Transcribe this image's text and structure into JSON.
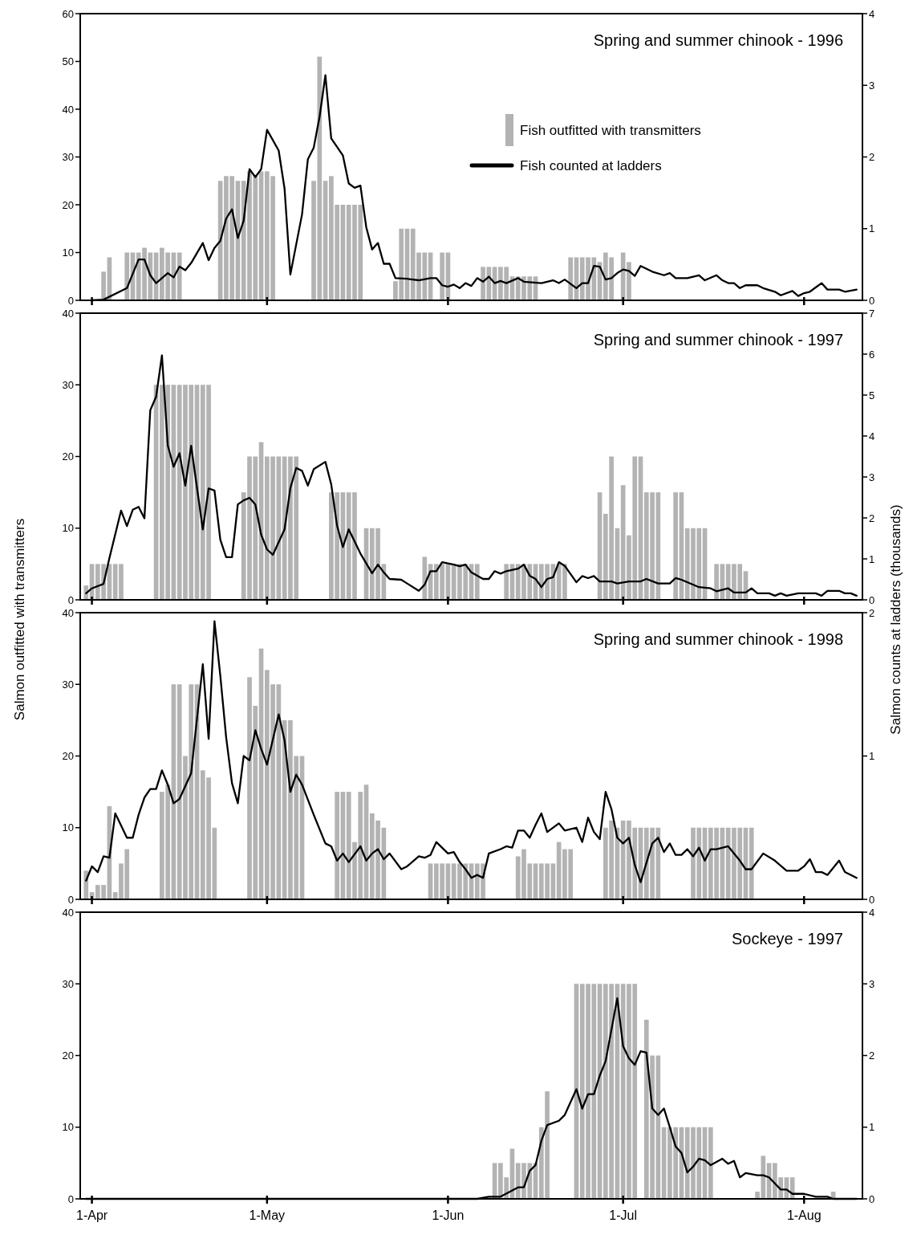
{
  "chart_data": [
    {
      "type": "bar",
      "title": "Spring and summer chinook - 1996",
      "legend": "right",
      "tick_labels": "y",
      "xlim": [
        "--03-30",
        "--08-11"
      ],
      "xticks": [
        {
          "value": "--04-01",
          "label": null
        },
        {
          "value": "--05-01",
          "label": null
        },
        {
          "value": "--06-01",
          "label": null
        },
        {
          "value": "--07-01",
          "label": null
        },
        {
          "value": "--08-01",
          "label": null
        }
      ],
      "ylim": [
        0,
        60
      ],
      "yticks": [
        0,
        10,
        20,
        30,
        40,
        50,
        60
      ],
      "y2lim": [
        0,
        4
      ],
      "y2ticks": [
        0,
        1,
        2,
        3,
        4
      ],
      "series": [
        {
          "name": "Fish outfitted with transmitters",
          "color": "#b3b3b3",
          "x": [
            "--04-03",
            "--04-04",
            "--04-07",
            "--04-08",
            "--04-09",
            "--04-10",
            "--04-11",
            "--04-12",
            "--04-13",
            "--04-14",
            "--04-15",
            "--04-16",
            "--04-23",
            "--04-24",
            "--04-25",
            "--04-26",
            "--04-27",
            "--04-28",
            "--04-29",
            "--04-30",
            "--05-01",
            "--05-02",
            "--05-09",
            "--05-10",
            "--05-11",
            "--05-12",
            "--05-13",
            "--05-14",
            "--05-15",
            "--05-16",
            "--05-17",
            "--05-23",
            "--05-24",
            "--05-25",
            "--05-26",
            "--05-27",
            "--05-28",
            "--05-29",
            "--05-31",
            "--06-01",
            "--06-07",
            "--06-08",
            "--06-09",
            "--06-10",
            "--06-11",
            "--06-12",
            "--06-13",
            "--06-14",
            "--06-15",
            "--06-16",
            "--06-22",
            "--06-23",
            "--06-24",
            "--06-25",
            "--06-26",
            "--06-27",
            "--06-28",
            "--06-29",
            "--07-01",
            "--07-02"
          ],
          "values": [
            6,
            9,
            10,
            10,
            10,
            11,
            10,
            10,
            11,
            10,
            10,
            10,
            25,
            26,
            26,
            25,
            25,
            27,
            26,
            27,
            27,
            26,
            25,
            51,
            25,
            26,
            20,
            20,
            20,
            20,
            20,
            4,
            15,
            15,
            15,
            10,
            10,
            10,
            10,
            10,
            7,
            7,
            7,
            7,
            7,
            5,
            5,
            5,
            5,
            5,
            9,
            9,
            9,
            9,
            9,
            8,
            10,
            9,
            10,
            8
          ]
        },
        {
          "type": "line",
          "axis": "y2",
          "name": "Fish counted at ladders",
          "color": "#000000",
          "x": [
            "--04-01",
            "--04-03",
            "--04-07",
            "--04-09",
            "--04-10",
            "--04-11",
            "--04-12",
            "--04-14",
            "--04-15",
            "--04-16",
            "--04-17",
            "--04-18",
            "--04-20",
            "--04-21",
            "--04-22",
            "--04-23",
            "--04-24",
            "--04-25",
            "--04-26",
            "--04-27",
            "--04-28",
            "--04-29",
            "--04-30",
            "--05-01",
            "--05-03",
            "--05-04",
            "--05-05",
            "--05-07",
            "--05-08",
            "--05-09",
            "--05-10",
            "--05-11",
            "--05-12",
            "--05-14",
            "--05-15",
            "--05-16",
            "--05-17",
            "--05-18",
            "--05-19",
            "--05-20",
            "--05-21",
            "--05-22",
            "--05-23",
            "--05-25",
            "--05-27",
            "--05-29",
            "--05-30",
            "--05-31",
            "--06-01",
            "--06-02",
            "--06-03",
            "--06-04",
            "--06-05",
            "--06-06",
            "--06-07",
            "--06-08",
            "--06-09",
            "--06-10",
            "--06-11",
            "--06-13",
            "--06-14",
            "--06-17",
            "--06-19",
            "--06-20",
            "--06-21",
            "--06-23",
            "--06-24",
            "--06-25",
            "--06-26",
            "--06-27",
            "--06-28",
            "--06-29",
            "--06-30",
            "--07-01",
            "--07-02",
            "--07-03",
            "--07-04",
            "--07-06",
            "--07-08",
            "--07-09",
            "--07-10",
            "--07-12",
            "--07-14",
            "--07-15",
            "--07-17",
            "--07-18",
            "--07-19",
            "--07-20",
            "--07-21",
            "--07-22",
            "--07-24",
            "--07-25",
            "--07-27",
            "--07-28",
            "--07-30",
            "--07-31",
            "--08-01",
            "--08-02",
            "--08-04",
            "--08-05",
            "--08-07",
            "--08-08",
            "--08-10"
          ],
          "values": [
            0,
            0.01,
            0.17,
            0.57,
            0.57,
            0.35,
            0.24,
            0.38,
            0.32,
            0.47,
            0.42,
            0.52,
            0.8,
            0.56,
            0.73,
            0.83,
            1.14,
            1.27,
            0.87,
            1.11,
            1.83,
            1.72,
            1.83,
            2.38,
            2.09,
            1.56,
            0.36,
            1.2,
            1.97,
            2.13,
            2.56,
            3.14,
            2.26,
            2.02,
            1.63,
            1.57,
            1.6,
            1.02,
            0.71,
            0.8,
            0.51,
            0.51,
            0.31,
            0.3,
            0.28,
            0.31,
            0.31,
            0.21,
            0.19,
            0.22,
            0.17,
            0.24,
            0.2,
            0.31,
            0.26,
            0.33,
            0.24,
            0.27,
            0.24,
            0.31,
            0.26,
            0.24,
            0.28,
            0.24,
            0.29,
            0.17,
            0.24,
            0.24,
            0.48,
            0.47,
            0.29,
            0.31,
            0.38,
            0.43,
            0.41,
            0.34,
            0.48,
            0.4,
            0.35,
            0.38,
            0.31,
            0.31,
            0.35,
            0.28,
            0.35,
            0.28,
            0.24,
            0.24,
            0.17,
            0.21,
            0.21,
            0.17,
            0.12,
            0.07,
            0.13,
            0.06,
            0.1,
            0.12,
            0.24,
            0.15,
            0.15,
            0.12,
            0.15
          ]
        }
      ]
    },
    {
      "type": "bar",
      "title": "Spring and summer chinook - 1997",
      "tick_labels": "y",
      "ylabel": "Salmon outfitted with transmitters",
      "y2label": "Salmon counts at ladders (thousands)",
      "xlim": [
        "--03-30",
        "--08-11"
      ],
      "xticks": [
        {
          "value": "--04-01",
          "label": null
        },
        {
          "value": "--05-01",
          "label": null
        },
        {
          "value": "--06-01",
          "label": null
        },
        {
          "value": "--07-01",
          "label": null
        },
        {
          "value": "--08-01",
          "label": null
        }
      ],
      "ylim": [
        0,
        40
      ],
      "yticks": [
        0,
        10,
        20,
        30,
        40
      ],
      "y2lim": [
        0,
        7
      ],
      "y2ticks": [
        0,
        1,
        2,
        3,
        4,
        5,
        6,
        7
      ],
      "series": [
        {
          "color": "#b3b3b3",
          "x": [
            "--03-31",
            "--04-01",
            "--04-02",
            "--04-03",
            "--04-04",
            "--04-05",
            "--04-06",
            "--04-12",
            "--04-13",
            "--04-14",
            "--04-15",
            "--04-16",
            "--04-17",
            "--04-18",
            "--04-19",
            "--04-20",
            "--04-21",
            "--04-27",
            "--04-28",
            "--04-29",
            "--04-30",
            "--05-01",
            "--05-02",
            "--05-03",
            "--05-04",
            "--05-05",
            "--05-06",
            "--05-12",
            "--05-13",
            "--05-14",
            "--05-15",
            "--05-16",
            "--05-18",
            "--05-19",
            "--05-20",
            "--05-21",
            "--05-28",
            "--05-29",
            "--05-30",
            "--05-31",
            "--06-01",
            "--06-02",
            "--06-03",
            "--06-04",
            "--06-05",
            "--06-06",
            "--06-11",
            "--06-12",
            "--06-13",
            "--06-14",
            "--06-15",
            "--06-16",
            "--06-17",
            "--06-18",
            "--06-19",
            "--06-20",
            "--06-21",
            "--06-27",
            "--06-28",
            "--06-29",
            "--06-30",
            "--07-01",
            "--07-02",
            "--07-03",
            "--07-04",
            "--07-05",
            "--07-06",
            "--07-07",
            "--07-10",
            "--07-11",
            "--07-12",
            "--07-13",
            "--07-14",
            "--07-15",
            "--07-17",
            "--07-18",
            "--07-19",
            "--07-20",
            "--07-21",
            "--07-22"
          ],
          "values": [
            2,
            5,
            5,
            5,
            5,
            5,
            5,
            30,
            30,
            30,
            30,
            30,
            30,
            30,
            30,
            30,
            30,
            15,
            20,
            20,
            22,
            20,
            20,
            20,
            20,
            20,
            20,
            15,
            15,
            15,
            15,
            15,
            10,
            10,
            10,
            5,
            6,
            5,
            5,
            5,
            5,
            5,
            5,
            5,
            5,
            5,
            5,
            5,
            5,
            5,
            5,
            5,
            5,
            5,
            5,
            5,
            5,
            15,
            12,
            20,
            10,
            16,
            9,
            20,
            20,
            15,
            15,
            15,
            15,
            15,
            10,
            10,
            10,
            10,
            5,
            5,
            5,
            5,
            5,
            4
          ]
        },
        {
          "type": "line",
          "axis": "y2",
          "color": "#000000",
          "x": [
            "--03-31",
            "--04-01",
            "--04-03",
            "--04-04",
            "--04-06",
            "--04-07",
            "--04-08",
            "--04-09",
            "--04-10",
            "--04-11",
            "--04-12",
            "--04-13",
            "--04-14",
            "--04-15",
            "--04-16",
            "--04-17",
            "--04-18",
            "--04-20",
            "--04-21",
            "--04-22",
            "--04-23",
            "--04-24",
            "--04-25",
            "--04-26",
            "--04-27",
            "--04-28",
            "--04-29",
            "--04-30",
            "--05-01",
            "--05-02",
            "--05-04",
            "--05-05",
            "--05-06",
            "--05-07",
            "--05-08",
            "--05-09",
            "--05-11",
            "--05-12",
            "--05-13",
            "--05-14",
            "--05-15",
            "--05-17",
            "--05-19",
            "--05-20",
            "--05-21",
            "--05-22",
            "--05-24",
            "--05-25",
            "--05-27",
            "--05-28",
            "--05-29",
            "--05-30",
            "--05-31",
            "--06-02",
            "--06-03",
            "--06-04",
            "--06-05",
            "--06-07",
            "--06-08",
            "--06-09",
            "--06-10",
            "--06-11",
            "--06-13",
            "--06-14",
            "--06-15",
            "--06-16",
            "--06-17",
            "--06-18",
            "--06-19",
            "--06-20",
            "--06-21",
            "--06-23",
            "--06-24",
            "--06-25",
            "--06-26",
            "--06-27",
            "--06-29",
            "--06-30",
            "--07-02",
            "--07-04",
            "--07-05",
            "--07-07",
            "--07-09",
            "--07-10",
            "--07-11",
            "--07-14",
            "--07-16",
            "--07-17",
            "--07-19",
            "--07-20",
            "--07-22",
            "--07-23",
            "--07-24",
            "--07-26",
            "--07-27",
            "--07-28",
            "--07-29",
            "--07-31",
            "--08-03",
            "--08-04",
            "--08-05",
            "--08-07",
            "--08-08",
            "--08-09",
            "--08-10"
          ],
          "values": [
            0.16,
            0.28,
            0.39,
            1.02,
            2.18,
            1.8,
            2.2,
            2.27,
            1.99,
            4.63,
            4.96,
            5.97,
            3.77,
            3.25,
            3.58,
            2.79,
            3.76,
            1.72,
            2.72,
            2.67,
            1.47,
            1.04,
            1.04,
            2.33,
            2.43,
            2.49,
            2.33,
            1.59,
            1.23,
            1.1,
            1.72,
            2.73,
            3.22,
            3.15,
            2.79,
            3.19,
            3.37,
            2.82,
            1.81,
            1.29,
            1.72,
            1.13,
            0.65,
            0.86,
            0.67,
            0.51,
            0.49,
            0.4,
            0.22,
            0.37,
            0.7,
            0.7,
            0.92,
            0.86,
            0.82,
            0.86,
            0.67,
            0.51,
            0.51,
            0.7,
            0.64,
            0.7,
            0.76,
            0.86,
            0.59,
            0.51,
            0.31,
            0.51,
            0.55,
            0.92,
            0.83,
            0.43,
            0.58,
            0.53,
            0.58,
            0.45,
            0.45,
            0.4,
            0.45,
            0.45,
            0.51,
            0.4,
            0.4,
            0.53,
            0.49,
            0.31,
            0.28,
            0.21,
            0.28,
            0.18,
            0.18,
            0.28,
            0.16,
            0.16,
            0.1,
            0.16,
            0.1,
            0.16,
            0.16,
            0.1,
            0.22,
            0.22,
            0.16,
            0.16,
            0.1
          ]
        }
      ]
    },
    {
      "type": "bar",
      "title": "Spring and summer chinook - 1998",
      "tick_labels": "y",
      "xlim": [
        "--03-30",
        "--08-11"
      ],
      "xticks": [
        {
          "value": "--04-01",
          "label": null
        },
        {
          "value": "--05-01",
          "label": null
        },
        {
          "value": "--06-01",
          "label": null
        },
        {
          "value": "--07-01",
          "label": null
        },
        {
          "value": "--08-01",
          "label": null
        }
      ],
      "ylim": [
        0,
        40
      ],
      "yticks": [
        0,
        10,
        20,
        30,
        40
      ],
      "y2lim": [
        0,
        2
      ],
      "y2ticks": [
        0,
        1,
        2
      ],
      "series": [
        {
          "color": "#b3b3b3",
          "x": [
            "--03-31",
            "--04-01",
            "--04-02",
            "--04-03",
            "--04-04",
            "--04-05",
            "--04-06",
            "--04-07",
            "--04-13",
            "--04-14",
            "--04-15",
            "--04-16",
            "--04-17",
            "--04-18",
            "--04-19",
            "--04-20",
            "--04-21",
            "--04-22",
            "--04-28",
            "--04-29",
            "--04-30",
            "--05-01",
            "--05-02",
            "--05-03",
            "--05-04",
            "--05-05",
            "--05-06",
            "--05-07",
            "--05-13",
            "--05-14",
            "--05-15",
            "--05-16",
            "--05-17",
            "--05-18",
            "--05-19",
            "--05-20",
            "--05-21",
            "--05-29",
            "--05-30",
            "--05-31",
            "--06-01",
            "--06-02",
            "--06-03",
            "--06-04",
            "--06-05",
            "--06-06",
            "--06-07",
            "--06-13",
            "--06-14",
            "--06-15",
            "--06-16",
            "--06-17",
            "--06-18",
            "--06-19",
            "--06-20",
            "--06-21",
            "--06-22",
            "--06-28",
            "--06-29",
            "--06-30",
            "--07-01",
            "--07-02",
            "--07-03",
            "--07-04",
            "--07-05",
            "--07-06",
            "--07-07",
            "--07-13",
            "--07-14",
            "--07-15",
            "--07-16",
            "--07-17",
            "--07-18",
            "--07-19",
            "--07-20",
            "--07-21",
            "--07-22",
            "--07-23"
          ],
          "values": [
            4,
            1,
            2,
            2,
            13,
            1,
            5,
            7,
            15,
            16,
            30,
            30,
            20,
            30,
            30,
            18,
            17,
            10,
            31,
            27,
            35,
            32,
            30,
            30,
            25,
            25,
            20,
            20,
            15,
            15,
            15,
            8,
            15,
            16,
            12,
            11,
            10,
            5,
            5,
            5,
            5,
            5,
            5,
            5,
            5,
            5,
            5,
            6,
            7,
            5,
            5,
            5,
            5,
            5,
            8,
            7,
            7,
            10,
            11,
            10,
            11,
            11,
            10,
            10,
            10,
            10,
            10,
            10,
            10,
            10,
            10,
            10,
            10,
            10,
            10,
            10,
            10,
            10
          ]
        },
        {
          "type": "line",
          "axis": "y2",
          "color": "#000000",
          "x": [
            "--03-31",
            "--04-01",
            "--04-02",
            "--04-03",
            "--04-04",
            "--04-05",
            "--04-07",
            "--04-08",
            "--04-09",
            "--04-10",
            "--04-11",
            "--04-12",
            "--04-13",
            "--04-14",
            "--04-15",
            "--04-16",
            "--04-17",
            "--04-18",
            "--04-20",
            "--04-21",
            "--04-22",
            "--04-23",
            "--04-24",
            "--04-25",
            "--04-26",
            "--04-27",
            "--04-28",
            "--04-29",
            "--04-30",
            "--05-01",
            "--05-03",
            "--05-04",
            "--05-05",
            "--05-06",
            "--05-07",
            "--05-09",
            "--05-11",
            "--05-12",
            "--05-13",
            "--05-14",
            "--05-15",
            "--05-17",
            "--05-18",
            "--05-19",
            "--05-20",
            "--05-21",
            "--05-22",
            "--05-24",
            "--05-25",
            "--05-27",
            "--05-28",
            "--05-29",
            "--05-30",
            "--06-01",
            "--06-02",
            "--06-03",
            "--06-04",
            "--06-05",
            "--06-06",
            "--06-07",
            "--06-08",
            "--06-10",
            "--06-11",
            "--06-12",
            "--06-13",
            "--06-14",
            "--06-15",
            "--06-16",
            "--06-17",
            "--06-18",
            "--06-20",
            "--06-21",
            "--06-23",
            "--06-24",
            "--06-25",
            "--06-26",
            "--06-27",
            "--06-28",
            "--06-29",
            "--06-30",
            "--07-01",
            "--07-02",
            "--07-03",
            "--07-04",
            "--07-06",
            "--07-07",
            "--07-08",
            "--07-09",
            "--07-10",
            "--07-11",
            "--07-12",
            "--07-13",
            "--07-14",
            "--07-15",
            "--07-16",
            "--07-17",
            "--07-19",
            "--07-21",
            "--07-22",
            "--07-23",
            "--07-25",
            "--07-27",
            "--07-29",
            "--07-31",
            "--08-01",
            "--08-02",
            "--08-03",
            "--08-04",
            "--08-05",
            "--08-06",
            "--08-07",
            "--08-08",
            "--08-10"
          ],
          "values": [
            0.13,
            0.23,
            0.19,
            0.3,
            0.29,
            0.6,
            0.43,
            0.43,
            0.59,
            0.71,
            0.77,
            0.77,
            0.9,
            0.8,
            0.67,
            0.7,
            0.79,
            0.88,
            1.64,
            1.12,
            1.94,
            1.56,
            1.13,
            0.81,
            0.67,
            1.0,
            0.97,
            1.18,
            1.05,
            0.94,
            1.29,
            1.11,
            0.75,
            0.87,
            0.8,
            0.59,
            0.39,
            0.37,
            0.27,
            0.32,
            0.26,
            0.37,
            0.27,
            0.32,
            0.35,
            0.28,
            0.32,
            0.21,
            0.23,
            0.3,
            0.29,
            0.31,
            0.4,
            0.32,
            0.33,
            0.26,
            0.21,
            0.15,
            0.17,
            0.15,
            0.32,
            0.35,
            0.37,
            0.36,
            0.48,
            0.48,
            0.43,
            0.52,
            0.6,
            0.47,
            0.53,
            0.48,
            0.5,
            0.4,
            0.57,
            0.47,
            0.42,
            0.75,
            0.63,
            0.43,
            0.39,
            0.43,
            0.24,
            0.12,
            0.39,
            0.43,
            0.33,
            0.39,
            0.31,
            0.31,
            0.35,
            0.3,
            0.36,
            0.27,
            0.35,
            0.35,
            0.37,
            0.27,
            0.21,
            0.21,
            0.32,
            0.27,
            0.2,
            0.2,
            0.23,
            0.28,
            0.19,
            0.19,
            0.17,
            0.22,
            0.27,
            0.19,
            0.15
          ]
        }
      ]
    },
    {
      "type": "bar",
      "title": "Sockeye - 1997",
      "xlim": [
        "--03-30",
        "--08-11"
      ],
      "xticks": [
        {
          "value": "--04-01",
          "label": "1-Apr"
        },
        {
          "value": "--05-01",
          "label": "1-May"
        },
        {
          "value": "--06-01",
          "label": "1-Jun"
        },
        {
          "value": "--07-01",
          "label": "1-Jul"
        },
        {
          "value": "--08-01",
          "label": "1-Aug"
        }
      ],
      "ylim": [
        0,
        40
      ],
      "yticks": [
        0,
        10,
        20,
        30,
        40
      ],
      "y2lim": [
        0,
        4
      ],
      "y2ticks": [
        0,
        1,
        2,
        3,
        4
      ],
      "series": [
        {
          "color": "#b3b3b3",
          "x": [
            "--06-09",
            "--06-10",
            "--06-11",
            "--06-12",
            "--06-13",
            "--06-14",
            "--06-15",
            "--06-16",
            "--06-17",
            "--06-18",
            "--06-23",
            "--06-24",
            "--06-25",
            "--06-26",
            "--06-27",
            "--06-28",
            "--06-29",
            "--06-30",
            "--07-01",
            "--07-02",
            "--07-03",
            "--07-05",
            "--07-06",
            "--07-07",
            "--07-08",
            "--07-09",
            "--07-10",
            "--07-11",
            "--07-12",
            "--07-13",
            "--07-14",
            "--07-15",
            "--07-16",
            "--07-24",
            "--07-25",
            "--07-26",
            "--07-27",
            "--07-28",
            "--07-29",
            "--07-30",
            "--08-06"
          ],
          "values": [
            5,
            5,
            3,
            7,
            5,
            5,
            5,
            5,
            10,
            15,
            30,
            30,
            30,
            30,
            30,
            30,
            30,
            30,
            30,
            30,
            30,
            25,
            20,
            20,
            10,
            10,
            10,
            10,
            10,
            10,
            10,
            10,
            10,
            1,
            6,
            5,
            5,
            3,
            3,
            3,
            1
          ]
        },
        {
          "type": "line",
          "axis": "y2",
          "color": "#000000",
          "x": [
            "--03-31",
            "--06-06",
            "--06-08",
            "--06-10",
            "--06-13",
            "--06-14",
            "--06-15",
            "--06-16",
            "--06-17",
            "--06-18",
            "--06-20",
            "--06-21",
            "--06-23",
            "--06-24",
            "--06-25",
            "--06-26",
            "--06-27",
            "--06-28",
            "--06-30",
            "--07-01",
            "--07-02",
            "--07-03",
            "--07-04",
            "--07-05",
            "--07-06",
            "--07-07",
            "--07-08",
            "--07-09",
            "--07-10",
            "--07-11",
            "--07-12",
            "--07-13",
            "--07-14",
            "--07-15",
            "--07-16",
            "--07-18",
            "--07-19",
            "--07-20",
            "--07-21",
            "--07-22",
            "--07-24",
            "--07-25",
            "--07-26",
            "--07-28",
            "--07-29",
            "--07-30",
            "--08-01",
            "--08-03",
            "--08-05",
            "--08-06",
            "--08-10"
          ],
          "values": [
            0,
            0,
            0.03,
            0.03,
            0.16,
            0.16,
            0.39,
            0.47,
            0.81,
            1.03,
            1.09,
            1.17,
            1.53,
            1.26,
            1.46,
            1.46,
            1.72,
            1.92,
            2.8,
            2.13,
            1.96,
            1.87,
            2.06,
            2.04,
            1.26,
            1.17,
            1.26,
            1.0,
            0.73,
            0.64,
            0.37,
            0.45,
            0.56,
            0.54,
            0.47,
            0.56,
            0.49,
            0.53,
            0.3,
            0.36,
            0.33,
            0.33,
            0.3,
            0.13,
            0.13,
            0.07,
            0.07,
            0.03,
            0.03,
            0,
            0
          ]
        }
      ]
    }
  ]
}
